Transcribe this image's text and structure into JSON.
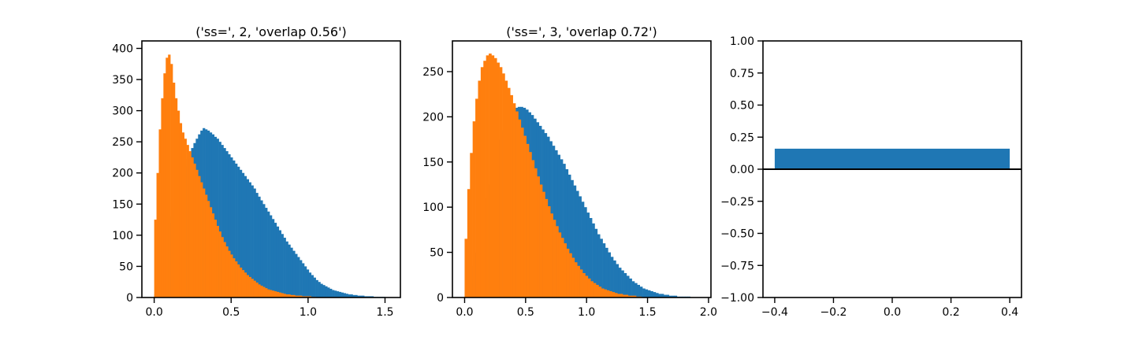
{
  "colors": {
    "series_blue": "#1f77b4",
    "series_orange": "#ff7f0e",
    "axes": "#000000"
  },
  "chart_data": [
    {
      "type": "histogram",
      "title": "('ss=', 2, 'overlap 0.56')",
      "xlim": [
        -0.08,
        1.6
      ],
      "ylim": [
        0,
        412
      ],
      "xticks": [
        {
          "v": 0.0,
          "label": "0.0"
        },
        {
          "v": 0.5,
          "label": "0.5"
        },
        {
          "v": 1.0,
          "label": "1.0"
        },
        {
          "v": 1.5,
          "label": "1.5"
        }
      ],
      "yticks": [
        {
          "v": 0,
          "label": "0"
        },
        {
          "v": 50,
          "label": "50"
        },
        {
          "v": 100,
          "label": "100"
        },
        {
          "v": 150,
          "label": "150"
        },
        {
          "v": 200,
          "label": "200"
        },
        {
          "v": 250,
          "label": "250"
        },
        {
          "v": 300,
          "label": "300"
        },
        {
          "v": 350,
          "label": "350"
        },
        {
          "v": 400,
          "label": "400"
        }
      ],
      "series": [
        {
          "color": "#1f77b4",
          "x_start": 0.0,
          "x_end": 1.5,
          "values": [
            5,
            20,
            40,
            60,
            80,
            100,
            120,
            130,
            140,
            150,
            165,
            180,
            195,
            210,
            222,
            232,
            240,
            248,
            255,
            262,
            268,
            272,
            270,
            268,
            265,
            262,
            258,
            255,
            250,
            245,
            240,
            235,
            230,
            225,
            220,
            215,
            210,
            205,
            200,
            195,
            190,
            185,
            180,
            175,
            168,
            162,
            156,
            150,
            144,
            138,
            132,
            126,
            120,
            114,
            108,
            102,
            96,
            90,
            85,
            80,
            75,
            70,
            65,
            60,
            55,
            50,
            45,
            40,
            36,
            32,
            28,
            25,
            22,
            20,
            18,
            16,
            14,
            12,
            11,
            10,
            9,
            8,
            7,
            6,
            5,
            5,
            4,
            4,
            3,
            3,
            3,
            2,
            2,
            2,
            2,
            1,
            1,
            1,
            1,
            1
          ]
        },
        {
          "color": "#ff7f0e",
          "x_start": 0.0,
          "x_end": 1.05,
          "values": [
            125,
            200,
            270,
            320,
            360,
            385,
            390,
            375,
            345,
            320,
            300,
            280,
            265,
            255,
            245,
            235,
            225,
            215,
            205,
            195,
            185,
            175,
            165,
            155,
            145,
            135,
            125,
            115,
            106,
            97,
            89,
            82,
            75,
            69,
            63,
            58,
            53,
            48,
            44,
            40,
            36,
            33,
            30,
            27,
            24,
            21,
            19,
            17,
            15,
            13,
            12,
            11,
            10,
            9,
            8,
            7,
            6,
            5,
            5,
            4,
            4,
            3,
            3,
            3,
            2,
            2,
            2,
            2,
            1,
            1
          ]
        }
      ]
    },
    {
      "type": "histogram",
      "title": "('ss=', 3, 'overlap 0.72')",
      "xlim": [
        -0.1,
        2.02
      ],
      "ylim": [
        0,
        284
      ],
      "xticks": [
        {
          "v": 0.0,
          "label": "0.0"
        },
        {
          "v": 0.5,
          "label": "0.5"
        },
        {
          "v": 1.0,
          "label": "1.0"
        },
        {
          "v": 1.5,
          "label": "1.5"
        },
        {
          "v": 2.0,
          "label": "2.0"
        }
      ],
      "yticks": [
        {
          "v": 0,
          "label": "0"
        },
        {
          "v": 50,
          "label": "50"
        },
        {
          "v": 100,
          "label": "100"
        },
        {
          "v": 150,
          "label": "150"
        },
        {
          "v": 200,
          "label": "200"
        },
        {
          "v": 250,
          "label": "250"
        }
      ],
      "series": [
        {
          "color": "#1f77b4",
          "x_start": 0.0,
          "x_end": 1.85,
          "values": [
            3,
            10,
            20,
            35,
            50,
            65,
            80,
            95,
            110,
            125,
            140,
            152,
            164,
            175,
            185,
            193,
            200,
            205,
            208,
            210,
            211,
            211,
            210,
            208,
            205,
            202,
            198,
            194,
            190,
            186,
            182,
            178,
            173,
            168,
            163,
            158,
            153,
            148,
            142,
            136,
            130,
            124,
            118,
            112,
            106,
            100,
            94,
            88,
            82,
            76,
            70,
            65,
            60,
            55,
            50,
            45,
            41,
            37,
            33,
            30,
            27,
            24,
            21,
            18,
            16,
            14,
            12,
            10,
            9,
            8,
            7,
            6,
            5,
            4,
            4,
            3,
            3,
            2,
            2,
            2,
            1,
            1,
            1,
            1,
            1
          ]
        },
        {
          "color": "#ff7f0e",
          "x_start": 0.0,
          "x_end": 1.45,
          "values": [
            65,
            120,
            160,
            195,
            220,
            240,
            255,
            262,
            268,
            270,
            268,
            265,
            260,
            255,
            248,
            240,
            232,
            224,
            215,
            206,
            197,
            188,
            179,
            170,
            161,
            152,
            143,
            134,
            125,
            117,
            109,
            101,
            93,
            86,
            79,
            72,
            66,
            60,
            54,
            49,
            44,
            39,
            35,
            31,
            27,
            24,
            21,
            18,
            16,
            14,
            12,
            10,
            9,
            8,
            7,
            6,
            5,
            4,
            4,
            3,
            3,
            2,
            2,
            2,
            1,
            1
          ]
        }
      ]
    },
    {
      "type": "bar",
      "title": "",
      "xlim": [
        -0.44,
        0.44
      ],
      "ylim": [
        -1.0,
        1.0
      ],
      "xticks": [
        {
          "v": -0.4,
          "label": "−0.4"
        },
        {
          "v": -0.2,
          "label": "−0.2"
        },
        {
          "v": 0.0,
          "label": "0.0"
        },
        {
          "v": 0.2,
          "label": "0.2"
        },
        {
          "v": 0.4,
          "label": "0.4"
        }
      ],
      "yticks": [
        {
          "v": -1.0,
          "label": "−1.00"
        },
        {
          "v": -0.75,
          "label": "−0.75"
        },
        {
          "v": -0.5,
          "label": "−0.50"
        },
        {
          "v": -0.25,
          "label": "−0.25"
        },
        {
          "v": 0.0,
          "label": "0.00"
        },
        {
          "v": 0.25,
          "label": "0.25"
        },
        {
          "v": 0.5,
          "label": "0.50"
        },
        {
          "v": 0.75,
          "label": "0.75"
        },
        {
          "v": 1.0,
          "label": "1.00"
        }
      ],
      "bars": [
        {
          "x": 0.0,
          "width": 0.8,
          "value": 0.16,
          "color": "#1f77b4"
        }
      ],
      "hline": 0.0
    }
  ]
}
